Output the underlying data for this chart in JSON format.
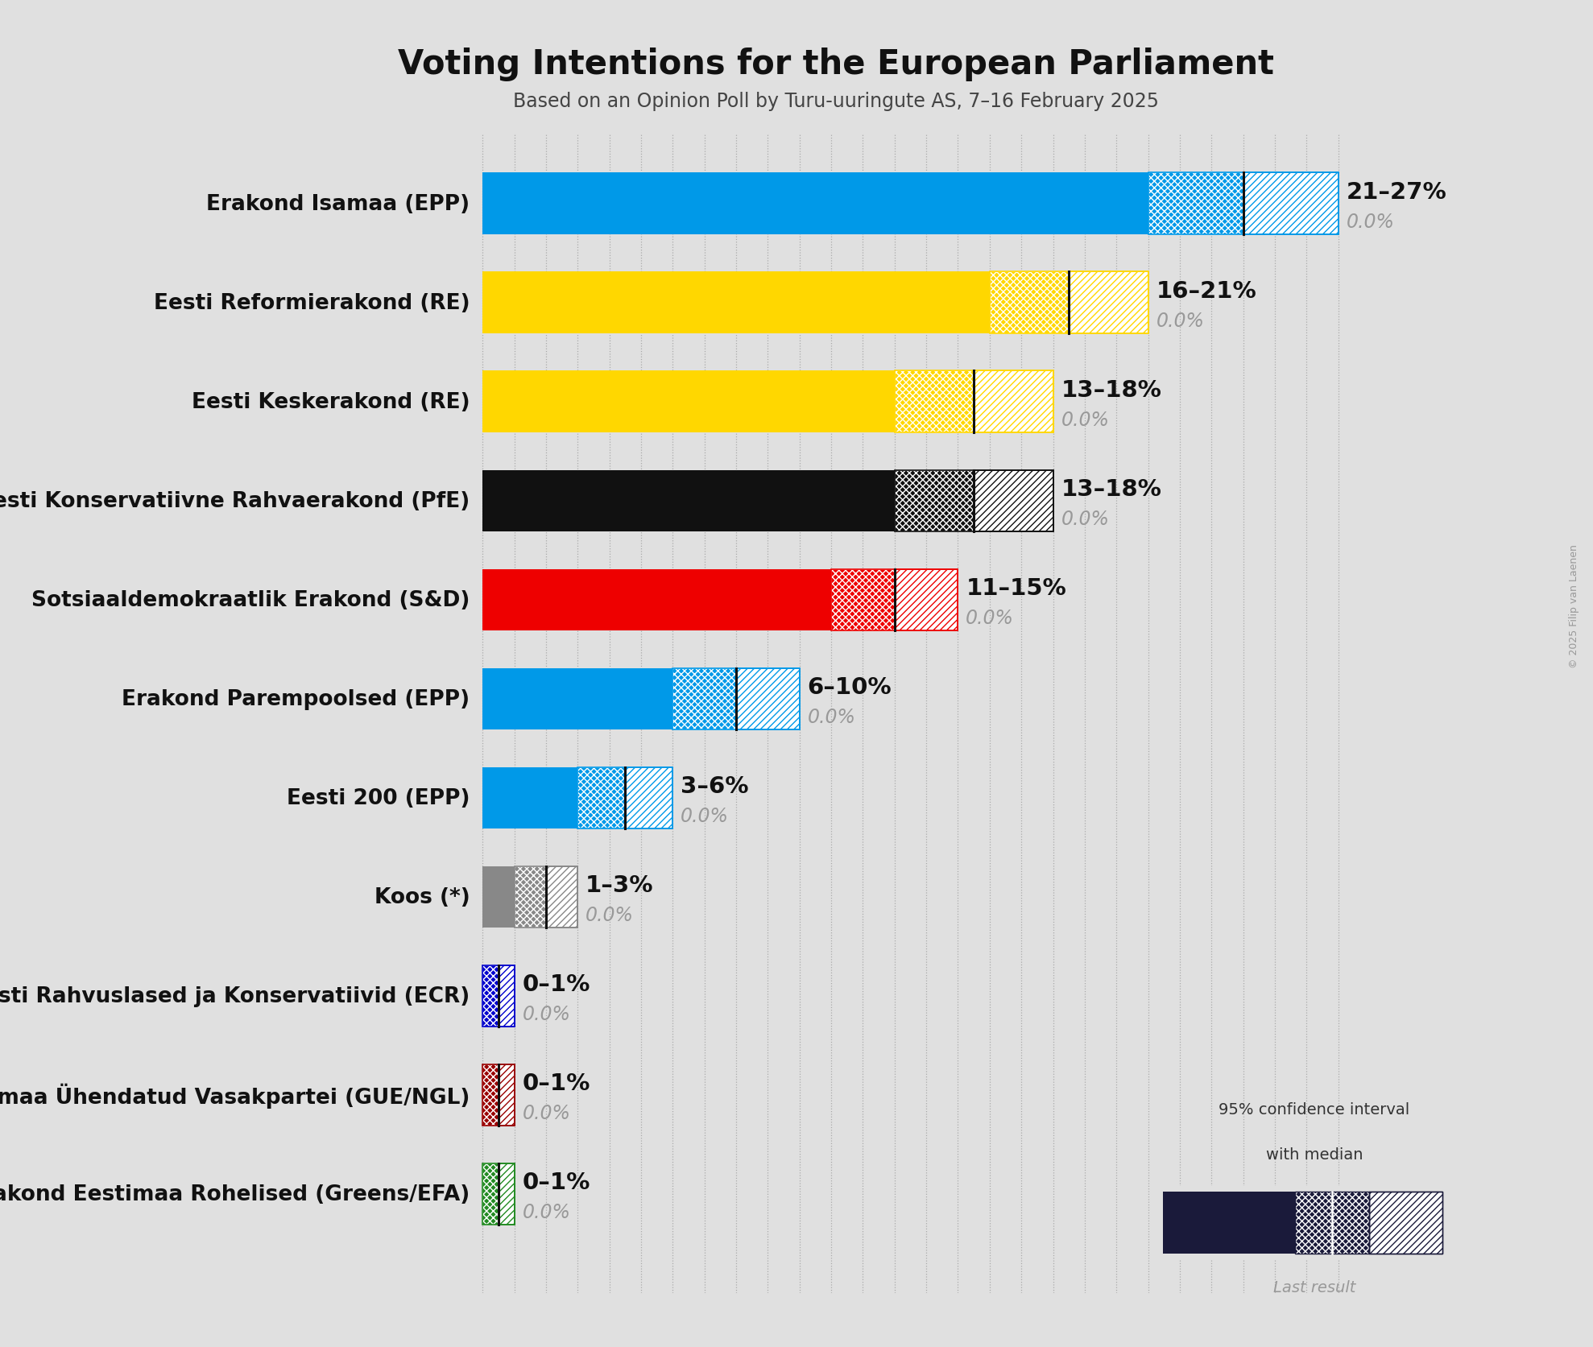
{
  "title": "Voting Intentions for the European Parliament",
  "subtitle": "Based on an Opinion Poll by Turu-uuringute AS, 7–16 February 2025",
  "copyright": "© 2025 Filip van Laenen",
  "background_color": "#e0e0e0",
  "parties": [
    {
      "name": "Erakond Isamaa (EPP)",
      "median": 24,
      "low": 21,
      "high": 27,
      "color": "#0099E8",
      "label": "21–27%",
      "last": 0.0
    },
    {
      "name": "Eesti Reformierakond (RE)",
      "median": 18.5,
      "low": 16,
      "high": 21,
      "color": "#FFD700",
      "label": "16–21%",
      "last": 0.0
    },
    {
      "name": "Eesti Keskerakond (RE)",
      "median": 15.5,
      "low": 13,
      "high": 18,
      "color": "#FFD700",
      "label": "13–18%",
      "last": 0.0
    },
    {
      "name": "Eesti Konservatiivne Rahvaerakond (PfE)",
      "median": 15.5,
      "low": 13,
      "high": 18,
      "color": "#111111",
      "label": "13–18%",
      "last": 0.0
    },
    {
      "name": "Sotsiaaldemokraatlik Erakond (S&D)",
      "median": 13,
      "low": 11,
      "high": 15,
      "color": "#EE0000",
      "label": "11–15%",
      "last": 0.0
    },
    {
      "name": "Erakond Parempoolsed (EPP)",
      "median": 8,
      "low": 6,
      "high": 10,
      "color": "#0099E8",
      "label": "6–10%",
      "last": 0.0
    },
    {
      "name": "Eesti 200 (EPP)",
      "median": 4.5,
      "low": 3,
      "high": 6,
      "color": "#0099E8",
      "label": "3–6%",
      "last": 0.0
    },
    {
      "name": "Koos (*)",
      "median": 2,
      "low": 1,
      "high": 3,
      "color": "#888888",
      "label": "1–3%",
      "last": 0.0
    },
    {
      "name": "Eesti Rahvuslased ja Konservatiivid (ECR)",
      "median": 0.5,
      "low": 0,
      "high": 1,
      "color": "#0000CC",
      "label": "0–1%",
      "last": 0.0
    },
    {
      "name": "Eestimaa Ühendatud Vasakpartei (GUE/NGL)",
      "median": 0.5,
      "low": 0,
      "high": 1,
      "color": "#990000",
      "label": "0–1%",
      "last": 0.0
    },
    {
      "name": "Erakond Eestimaa Rohelised (Greens/EFA)",
      "median": 0.5,
      "low": 0,
      "high": 1,
      "color": "#228B22",
      "label": "0–1%",
      "last": 0.0
    }
  ],
  "xlim_max": 27.5,
  "bar_height": 0.62,
  "grid_color": "#aaaaaa",
  "name_color": "#111111",
  "label_color": "#111111",
  "last_color": "#999999"
}
